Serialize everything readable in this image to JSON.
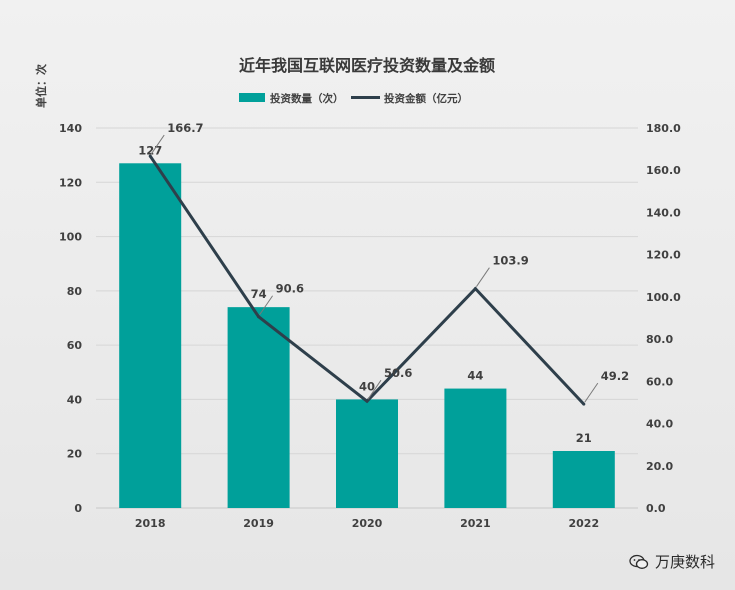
{
  "chart_data": {
    "type": "bar",
    "title": "近年我国互联网医疗投资数量及金额",
    "unit_label": "单位：次",
    "categories": [
      "2018",
      "2019",
      "2020",
      "2021",
      "2022"
    ],
    "series": [
      {
        "name": "投资数量（次）",
        "type": "bar",
        "axis": "left",
        "color": "#00a09a",
        "values": [
          127,
          74,
          40,
          44,
          21
        ]
      },
      {
        "name": "投资金额（亿元）",
        "type": "line",
        "axis": "right",
        "color": "#2e3f4b",
        "values": [
          166.7,
          90.6,
          50.6,
          103.9,
          49.2
        ]
      }
    ],
    "y_left": {
      "min": 0,
      "max": 140,
      "step": 20
    },
    "y_right": {
      "min": 0,
      "max": 180,
      "step": 20,
      "decimals": 1
    },
    "grid": true,
    "legend_position": "top"
  },
  "watermark": {
    "text": "万庚数科",
    "icon": "wechat-icon"
  }
}
